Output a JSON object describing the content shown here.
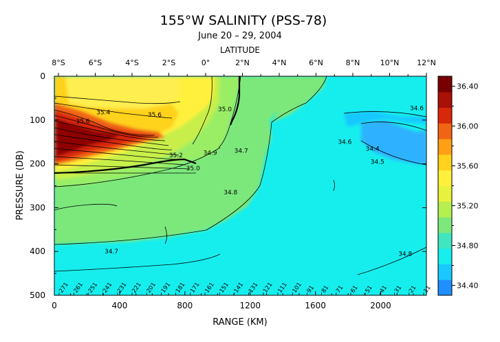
{
  "chart_data": {
    "type": "heatmap",
    "title": "155°W SALINITY (PSS-78)",
    "subtitle": "June 20 – 29, 2004",
    "top_axis_label": "LATITUDE",
    "xlabel": "RANGE (KM)",
    "ylabel": "PRESSURE (DB)",
    "xlim": [
      0,
      2280
    ],
    "ylim": [
      0,
      500
    ],
    "y_inverted": true,
    "x_ticks": [
      "0",
      "400",
      "800",
      "1200",
      "1600",
      "2000"
    ],
    "x_tick_values": [
      0,
      400,
      800,
      1200,
      1600,
      2000
    ],
    "y_ticks": [
      "0",
      "100",
      "200",
      "300",
      "400",
      "500"
    ],
    "y_tick_values": [
      0,
      100,
      200,
      300,
      400,
      500
    ],
    "lat_ticks": [
      "8°S",
      "6°S",
      "4°S",
      "2°S",
      "0°",
      "2°N",
      "4°N",
      "6°N",
      "8°N",
      "10°N",
      "12°N"
    ],
    "lat_tick_values": [
      -8,
      -6,
      -4,
      -2,
      0,
      2,
      4,
      6,
      8,
      10,
      12
    ],
    "colorbar": {
      "ticks": [
        "36.40",
        "36.00",
        "35.60",
        "35.20",
        "34.80",
        "34.40"
      ],
      "tick_values": [
        36.4,
        36.0,
        35.6,
        35.2,
        34.8,
        34.4
      ],
      "range": [
        34.3,
        36.5
      ],
      "colors": [
        "#1f8fff",
        "#19c8ff",
        "#16eeee",
        "#3fe6c0",
        "#7ce87c",
        "#b5ef50",
        "#e7f23c",
        "#fff03c",
        "#ffd21c",
        "#ffa014",
        "#f06414",
        "#d8280a",
        "#a81008",
        "#780000"
      ]
    },
    "contour_labels": [
      {
        "text": "35.4",
        "x": 300,
        "p": 82
      },
      {
        "text": "35.6",
        "x": 175,
        "p": 103
      },
      {
        "text": "35.6",
        "x": 615,
        "p": 88
      },
      {
        "text": "35.2",
        "x": 745,
        "p": 180
      },
      {
        "text": "35.0",
        "x": 850,
        "p": 210
      },
      {
        "text": "34.9",
        "x": 955,
        "p": 175
      },
      {
        "text": "35.0",
        "x": 1045,
        "p": 75
      },
      {
        "text": "34.7",
        "x": 1145,
        "p": 170
      },
      {
        "text": "34.8",
        "x": 1080,
        "p": 265
      },
      {
        "text": "34.7",
        "x": 350,
        "p": 400
      },
      {
        "text": "34.6",
        "x": 1780,
        "p": 150
      },
      {
        "text": "34.6",
        "x": 2280,
        "p": 73
      },
      {
        "text": "34.4",
        "x": 1950,
        "p": 165
      },
      {
        "text": "34.5",
        "x": 1980,
        "p": 195
      },
      {
        "text": "34.8",
        "x": 2150,
        "p": 405
      }
    ],
    "station_labels": [
      "271",
      "261",
      "251",
      "241",
      "231",
      "221",
      "201",
      "191",
      "181",
      "171",
      "161",
      "151",
      "141",
      "131",
      "121",
      "111",
      "101",
      "91",
      "81",
      "71",
      "61",
      "51",
      "41",
      "31",
      "21",
      "11"
    ]
  }
}
